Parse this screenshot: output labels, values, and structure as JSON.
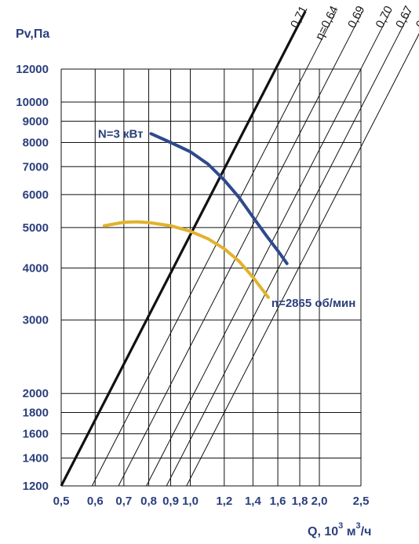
{
  "chart_data": {
    "type": "line",
    "title": "",
    "ylabel": "Pv,Па",
    "xlabel": {
      "base": "Q, 10",
      "exp1": "3",
      "mid": " м",
      "exp2": "3",
      "end": "/ч"
    },
    "x_scale": "log",
    "y_scale": "log",
    "xlim": [
      0.5,
      2.5
    ],
    "ylim": [
      1200,
      12000
    ],
    "grid": true,
    "x_ticks": [
      {
        "v": 0.5,
        "label": "0,5"
      },
      {
        "v": 0.6,
        "label": "0,6"
      },
      {
        "v": 0.7,
        "label": "0,7"
      },
      {
        "v": 0.8,
        "label": "0,8"
      },
      {
        "v": 0.9,
        "label": "0,9"
      },
      {
        "v": 1.0,
        "label": "1,0"
      },
      {
        "v": 1.2,
        "label": "1,2"
      },
      {
        "v": 1.4,
        "label": "1,4"
      },
      {
        "v": 1.6,
        "label": "1,6"
      },
      {
        "v": 1.8,
        "label": "1,8"
      },
      {
        "v": 2.0,
        "label": "2,0"
      },
      {
        "v": 2.5,
        "label": "2,5"
      }
    ],
    "y_ticks": [
      {
        "v": 1200,
        "label": "1200"
      },
      {
        "v": 1400,
        "label": "1400"
      },
      {
        "v": 1600,
        "label": "1600"
      },
      {
        "v": 1800,
        "label": "1800"
      },
      {
        "v": 2000,
        "label": "2000"
      },
      {
        "v": 3000,
        "label": "3000"
      },
      {
        "v": 4000,
        "label": "4000"
      },
      {
        "v": 5000,
        "label": "5000"
      },
      {
        "v": 6000,
        "label": "6000"
      },
      {
        "v": 7000,
        "label": "7000"
      },
      {
        "v": 8000,
        "label": "8000"
      },
      {
        "v": 9000,
        "label": "9000"
      },
      {
        "v": 10000,
        "label": "10000"
      },
      {
        "v": 12000,
        "label": "12000"
      }
    ],
    "efficiency_lines": [
      {
        "label": "η=0,64",
        "x_at_ymin": 0.59,
        "bold": false
      },
      {
        "label": "0,69",
        "x_at_ymin": 0.68,
        "bold": false
      },
      {
        "label": "0,71",
        "x_at_ymin": 0.5,
        "bold": true
      },
      {
        "label": "0,70",
        "x_at_ymin": 0.79,
        "bold": false
      },
      {
        "label": "0,67",
        "x_at_ymin": 0.88,
        "bold": false
      },
      {
        "label": "0,64",
        "x_at_ymin": 0.98,
        "bold": false
      }
    ],
    "series": [
      {
        "name": "N=3 кВт",
        "color": "#2e4a8c",
        "x": [
          0.81,
          0.9,
          1.0,
          1.1,
          1.2,
          1.3,
          1.4,
          1.5,
          1.6,
          1.68
        ],
        "y": [
          8400,
          8000,
          7600,
          7100,
          6500,
          5900,
          5300,
          4800,
          4400,
          4100
        ]
      },
      {
        "name": "n=2865 об/мин",
        "color": "#e2b22c",
        "x": [
          0.63,
          0.7,
          0.75,
          0.8,
          0.9,
          1.0,
          1.1,
          1.2,
          1.3,
          1.4,
          1.52
        ],
        "y": [
          5050,
          5150,
          5160,
          5140,
          5050,
          4900,
          4700,
          4450,
          4150,
          3800,
          3400
        ]
      }
    ]
  }
}
